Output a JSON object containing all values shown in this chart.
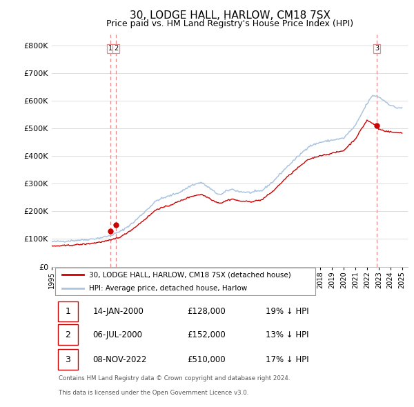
{
  "title": "30, LODGE HALL, HARLOW, CM18 7SX",
  "subtitle": "Price paid vs. HM Land Registry's House Price Index (HPI)",
  "title_fontsize": 11,
  "subtitle_fontsize": 9,
  "ytick_values": [
    0,
    100000,
    200000,
    300000,
    400000,
    500000,
    600000,
    700000,
    800000
  ],
  "ylim": [
    0,
    840000
  ],
  "background_color": "#ffffff",
  "grid_color": "#dddddd",
  "hpi_color": "#aac4e0",
  "price_color": "#cc0000",
  "vline_color": "#e88888",
  "legend_entries": [
    "30, LODGE HALL, HARLOW, CM18 7SX (detached house)",
    "HPI: Average price, detached house, Harlow"
  ],
  "table_data": [
    [
      "1",
      "14-JAN-2000",
      "£128,000",
      "19% ↓ HPI"
    ],
    [
      "2",
      "06-JUL-2000",
      "£152,000",
      "13% ↓ HPI"
    ],
    [
      "3",
      "08-NOV-2022",
      "£510,000",
      "17% ↓ HPI"
    ]
  ],
  "footnote1": "Contains HM Land Registry data © Crown copyright and database right 2024.",
  "footnote2": "This data is licensed under the Open Government Licence v3.0.",
  "x_start_year": 1995,
  "x_end_year": 2025
}
